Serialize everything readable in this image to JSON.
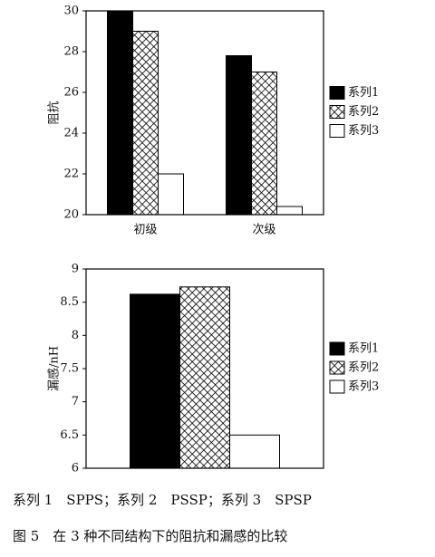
{
  "chart_data": [
    {
      "type": "bar",
      "y_label": "阻抗",
      "categories": [
        "初级",
        "次级"
      ],
      "series": [
        {
          "name": "系列1",
          "color": "#000000",
          "values": [
            30,
            27.8
          ]
        },
        {
          "name": "系列2",
          "color": "#ffffff",
          "pattern": "crosshatch",
          "values": [
            29,
            27
          ]
        },
        {
          "name": "系列3",
          "color": "#ffffff",
          "values": [
            22,
            20.4
          ]
        }
      ],
      "ylim": [
        20,
        30
      ],
      "yticks": [
        20,
        22,
        24,
        26,
        28,
        30
      ],
      "legend": "right"
    },
    {
      "type": "bar",
      "y_label": "漏感/nH",
      "categories": [
        null
      ],
      "series": [
        {
          "name": "系列1",
          "color": "#000000",
          "values": [
            8.62
          ]
        },
        {
          "name": "系列2",
          "color": "#ffffff",
          "pattern": "crosshatch",
          "values": [
            8.73
          ]
        },
        {
          "name": "系列3",
          "color": "#ffffff",
          "values": [
            6.5
          ]
        }
      ],
      "ylim": [
        6,
        9
      ],
      "yticks": [
        6,
        6.5,
        7,
        7.5,
        8,
        8.5,
        9
      ],
      "legend": "right"
    }
  ],
  "caption": "系列 1　SPPS；系列 2　PSSP；系列 3　SPSP",
  "figure_title": "图 5　在 3 种不同结构下的阻抗和漏感的比较"
}
